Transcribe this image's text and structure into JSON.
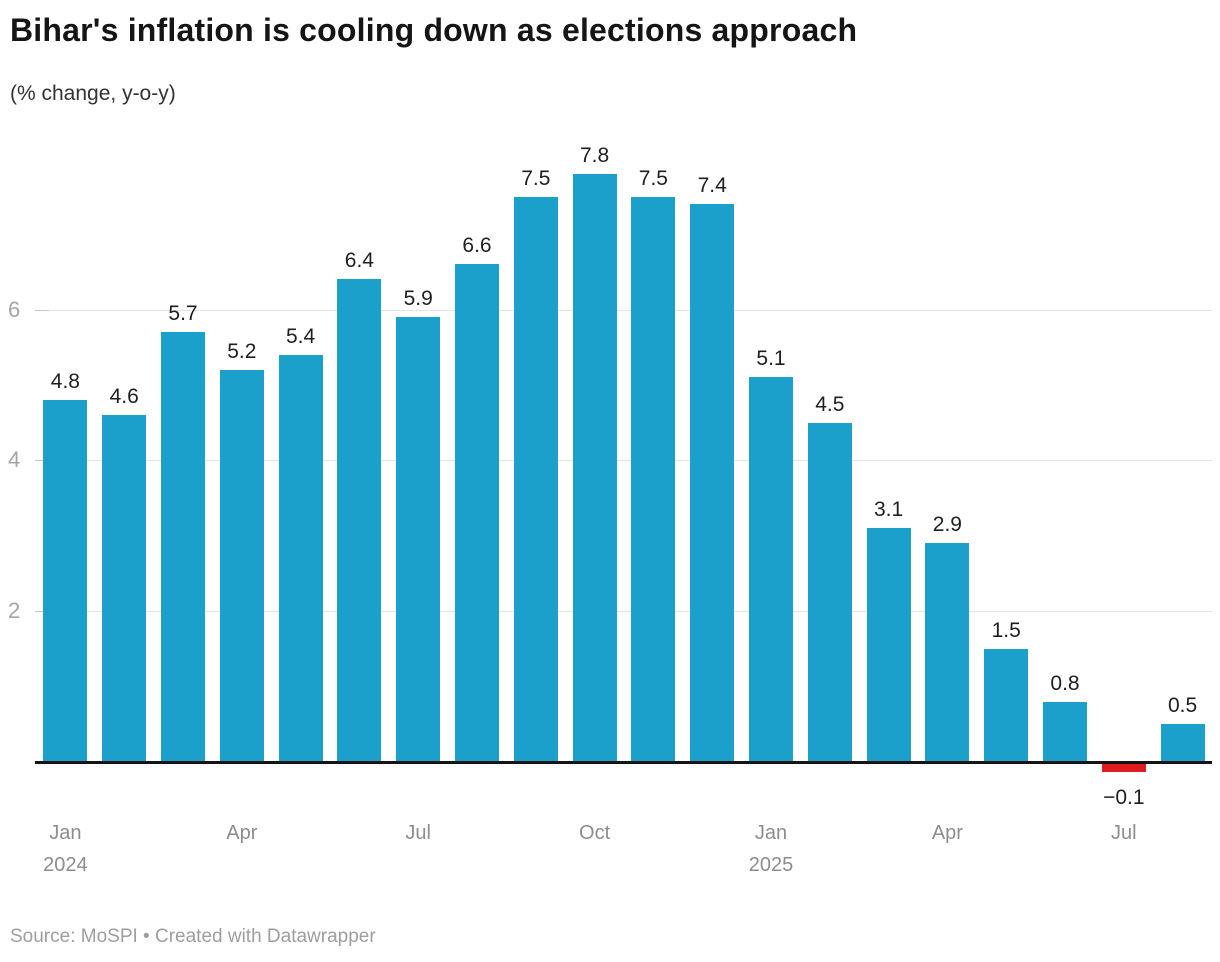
{
  "header": {
    "title": "Bihar's inflation is cooling down as elections approach",
    "subtitle": "(% change, y-o-y)"
  },
  "footer": {
    "source_line": "Source: MoSPI • Created with Datawrapper"
  },
  "chart_data": {
    "type": "bar",
    "title": "Bihar's inflation is cooling down as elections approach",
    "subtitle": "(% change, y-o-y)",
    "categories": [
      "Jan 2024",
      "Feb 2024",
      "Mar 2024",
      "Apr 2024",
      "May 2024",
      "Jun 2024",
      "Jul 2024",
      "Aug 2024",
      "Sep 2024",
      "Oct 2024",
      "Nov 2024",
      "Dec 2024",
      "Jan 2025",
      "Feb 2025",
      "Mar 2025",
      "Apr 2025",
      "May 2025",
      "Jun 2025",
      "Jul 2025",
      "Aug 2025"
    ],
    "values": [
      4.8,
      4.6,
      5.7,
      5.2,
      5.4,
      6.4,
      5.9,
      6.6,
      7.5,
      7.8,
      7.5,
      7.4,
      5.1,
      4.5,
      3.1,
      2.9,
      1.5,
      0.8,
      -0.1,
      0.5
    ],
    "bar_labels": [
      "4.8",
      "4.6",
      "5.7",
      "5.2",
      "5.4",
      "6.4",
      "5.9",
      "6.6",
      "7.5",
      "7.8",
      "7.5",
      "7.4",
      "5.1",
      "4.5",
      "3.1",
      "2.9",
      "1.5",
      "0.8",
      "−0.1",
      "0.5"
    ],
    "xlabel": "",
    "ylabel": "",
    "ylim": [
      -0.5,
      8
    ],
    "yticks": [
      2,
      4,
      6
    ],
    "ytick_labels": [
      "2",
      "4",
      "6"
    ],
    "x_ticks": [
      {
        "index": 0,
        "label": "Jan",
        "year": "2024"
      },
      {
        "index": 3,
        "label": "Apr",
        "year": ""
      },
      {
        "index": 6,
        "label": "Jul",
        "year": ""
      },
      {
        "index": 9,
        "label": "Oct",
        "year": ""
      },
      {
        "index": 12,
        "label": "Jan",
        "year": "2025"
      },
      {
        "index": 15,
        "label": "Apr",
        "year": ""
      },
      {
        "index": 18,
        "label": "Jul",
        "year": ""
      }
    ],
    "colors": {
      "positive_bar": "#1aa0ca",
      "negative_bar": "#df1c21",
      "baseline": "#141414",
      "gridline": "#e4e4e4"
    },
    "grid": true,
    "legend": false
  }
}
